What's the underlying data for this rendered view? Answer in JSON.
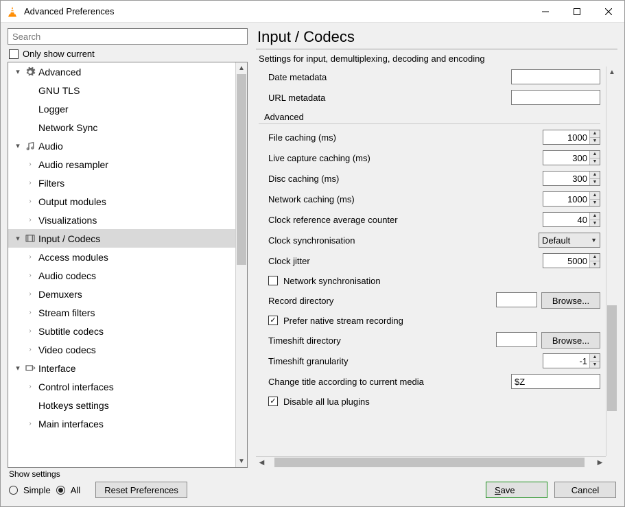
{
  "window": {
    "title": "Advanced Preferences"
  },
  "leftpane": {
    "search_placeholder": "Search",
    "only_show_current": "Only show current",
    "scroll": {
      "thumb_top_pct": 0,
      "thumb_height_pct": 50
    },
    "tree": [
      {
        "level": 0,
        "expanded": true,
        "icon": "gear",
        "label": "Advanced"
      },
      {
        "level": 1,
        "hasChildren": false,
        "label": "GNU TLS"
      },
      {
        "level": 1,
        "hasChildren": false,
        "label": "Logger"
      },
      {
        "level": 1,
        "hasChildren": false,
        "label": "Network Sync"
      },
      {
        "level": 0,
        "expanded": true,
        "icon": "audio",
        "label": "Audio"
      },
      {
        "level": 1,
        "hasChildren": true,
        "label": "Audio resampler"
      },
      {
        "level": 1,
        "hasChildren": true,
        "label": "Filters"
      },
      {
        "level": 1,
        "hasChildren": true,
        "label": "Output modules"
      },
      {
        "level": 1,
        "hasChildren": true,
        "label": "Visualizations"
      },
      {
        "level": 0,
        "expanded": true,
        "icon": "codec",
        "label": "Input / Codecs",
        "selected": true
      },
      {
        "level": 1,
        "hasChildren": true,
        "label": "Access modules"
      },
      {
        "level": 1,
        "hasChildren": true,
        "label": "Audio codecs"
      },
      {
        "level": 1,
        "hasChildren": true,
        "label": "Demuxers"
      },
      {
        "level": 1,
        "hasChildren": true,
        "label": "Stream filters"
      },
      {
        "level": 1,
        "hasChildren": true,
        "label": "Subtitle codecs"
      },
      {
        "level": 1,
        "hasChildren": true,
        "label": "Video codecs"
      },
      {
        "level": 0,
        "expanded": true,
        "icon": "interface",
        "label": "Interface"
      },
      {
        "level": 1,
        "hasChildren": true,
        "label": "Control interfaces"
      },
      {
        "level": 1,
        "hasChildren": false,
        "label": "Hotkeys settings"
      },
      {
        "level": 1,
        "hasChildren": true,
        "label": "Main interfaces"
      }
    ]
  },
  "rightpane": {
    "title": "Input / Codecs",
    "subtitle": "Settings for input, demultiplexing, decoding and encoding",
    "vscroll": {
      "thumb_top_pct": 60,
      "thumb_height_pct": 28
    },
    "hscroll": {
      "thumb_left_pct": 2,
      "thumb_width_pct": 95
    },
    "meta_rows": [
      {
        "label": "Date metadata",
        "value": ""
      },
      {
        "label": "URL metadata",
        "value": ""
      }
    ],
    "advanced_header": "Advanced",
    "spin_rows": [
      {
        "label": "File caching (ms)",
        "value": "1000"
      },
      {
        "label": "Live capture caching (ms)",
        "value": "300"
      },
      {
        "label": "Disc caching (ms)",
        "value": "300"
      },
      {
        "label": "Network caching (ms)",
        "value": "1000"
      },
      {
        "label": "Clock reference average counter",
        "value": "40"
      }
    ],
    "clock_sync": {
      "label": "Clock synchronisation",
      "value": "Default"
    },
    "clock_jitter": {
      "label": "Clock jitter",
      "value": "5000"
    },
    "net_sync": {
      "label": "Network synchronisation",
      "checked": false
    },
    "record_dir": {
      "label": "Record directory",
      "value": "",
      "browse": "Browse..."
    },
    "prefer_native": {
      "label": "Prefer native stream recording",
      "checked": true
    },
    "timeshift_dir": {
      "label": "Timeshift directory",
      "value": "",
      "browse": "Browse..."
    },
    "timeshift_gran": {
      "label": "Timeshift granularity",
      "value": "-1"
    },
    "change_title": {
      "label": "Change title according to current media",
      "value": "$Z"
    },
    "disable_lua": {
      "label": "Disable all lua plugins",
      "checked": true
    }
  },
  "bottom": {
    "show_settings": "Show settings",
    "simple": "Simple",
    "all": "All",
    "reset": "Reset Preferences",
    "save": "Save",
    "cancel": "Cancel"
  }
}
